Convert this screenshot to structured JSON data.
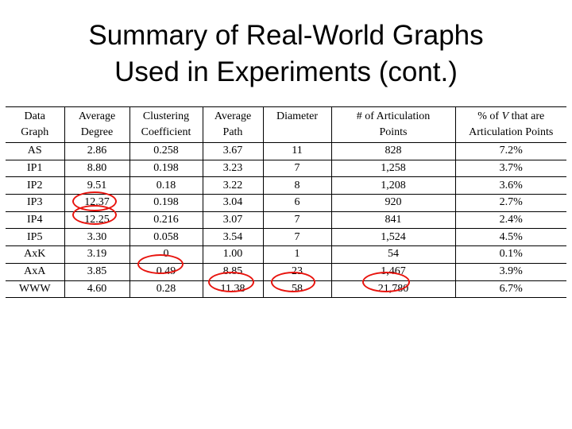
{
  "title": {
    "line1": "Summary of Real-World Graphs",
    "line2": "Used in Experiments (cont.)"
  },
  "table": {
    "headers": [
      [
        "Data",
        "Graph"
      ],
      [
        "Average",
        "Degree"
      ],
      [
        "Clustering",
        "Coefficient"
      ],
      [
        "Average",
        "Path"
      ],
      [
        "Diameter",
        ""
      ],
      [
        "# of Articulation",
        "Points"
      ],
      [
        "% of V that are",
        "Articulation Points"
      ]
    ],
    "rows": [
      [
        "AS",
        "2.86",
        "0.258",
        "3.67",
        "11",
        "828",
        "7.2%"
      ],
      [
        "IP1",
        "8.80",
        "0.198",
        "3.23",
        "7",
        "1,258",
        "3.7%"
      ],
      [
        "IP2",
        "9.51",
        "0.18",
        "3.22",
        "8",
        "1,208",
        "3.6%"
      ],
      [
        "IP3",
        "12.37",
        "0.198",
        "3.04",
        "6",
        "920",
        "2.7%"
      ],
      [
        "IP4",
        "12.25",
        "0.216",
        "3.07",
        "7",
        "841",
        "2.4%"
      ],
      [
        "IP5",
        "3.30",
        "0.058",
        "3.54",
        "7",
        "1,524",
        "4.5%"
      ],
      [
        "AxK",
        "3.19",
        "0",
        "1.00",
        "1",
        "54",
        "0.1%"
      ],
      [
        "AxA",
        "3.85",
        "0.49",
        "8.85",
        "23",
        "1,467",
        "3.9%"
      ],
      [
        "WWW",
        "4.60",
        "0.28",
        "11.38",
        "58",
        "21,780",
        "6.7%"
      ]
    ]
  },
  "highlight_color": "#e8140e"
}
